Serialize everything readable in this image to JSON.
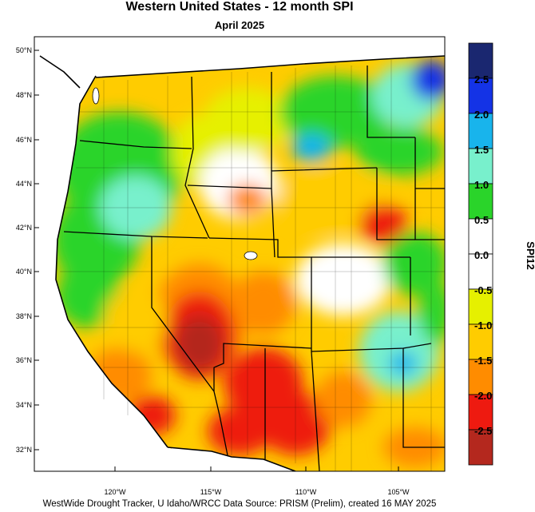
{
  "title": "Western United States - 12 month SPI",
  "subtitle": "April 2025",
  "footer": "WestWide Drought Tracker, U Idaho/WRCC Data Source: PRISM (Prelim), created 16 MAY 2025",
  "lat_labels": [
    "50°N",
    "48°N",
    "46°N",
    "44°N",
    "42°N",
    "40°N",
    "38°N",
    "36°N",
    "34°N",
    "32°N"
  ],
  "lon_labels": [
    "120°W",
    "115°W",
    "110°W",
    "105°W"
  ],
  "colorbar": {
    "label": "SPI12",
    "tick_labels": [
      "2.5",
      "2.0",
      "1.5",
      "1.0",
      "0.5",
      "0.0",
      "-0.5",
      "-1.0",
      "-1.5",
      "-2.0",
      "-2.5"
    ],
    "colors": [
      "#1a2770",
      "#1433e6",
      "#18b4ec",
      "#78f0cc",
      "#2ad42a",
      "#ffffff",
      "#ffffff",
      "#e6f000",
      "#ffcc00",
      "#ff8c00",
      "#ee1a10",
      "#b4281e"
    ]
  }
}
